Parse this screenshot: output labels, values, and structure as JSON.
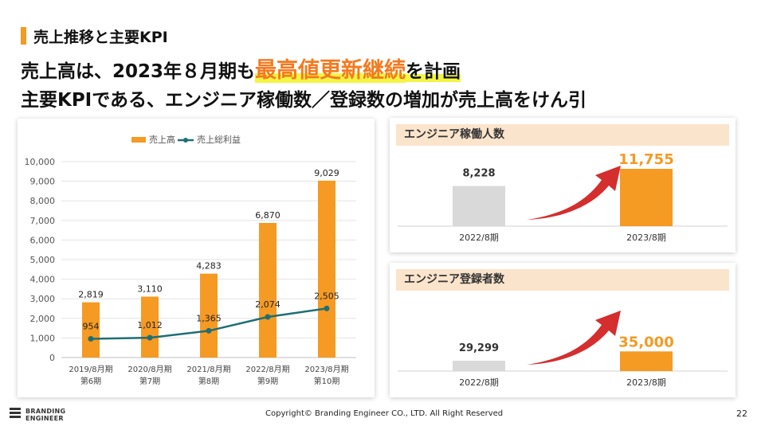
{
  "slide": {
    "section_title": "売上推移と主要KPI",
    "headline1_pre": "売上高は、2023年８月期も",
    "headline1_highlight": "最高値更新継続",
    "headline1_post": "を計画",
    "headline2": "主要KPIである、エンジニア稼働数／登録数の増加が売上高をけん引",
    "footer": "Copyright© Branding Engineer CO., LTD. All Right Reserved",
    "page_number": "22",
    "logo_line1": "BRANDING",
    "logo_line2": "ENGINEER"
  },
  "colors": {
    "accent": "#f59a23",
    "line": "#1f6e74",
    "highlight_text": "#f47a20",
    "marker": "#f3f542",
    "arrow": "#d42e2e",
    "grey_bar": "#d9d9d9",
    "kpi_header": "#fbe4cc"
  },
  "chart_data": [
    {
      "type": "bar",
      "categories": [
        [
          "2019/8月期",
          "第6期"
        ],
        [
          "2020/8月期",
          "第7期"
        ],
        [
          "2021/8月期",
          "第8期"
        ],
        [
          "2022/8月期",
          "第9期"
        ],
        [
          "2023/8月期",
          "第10期"
        ]
      ],
      "series": [
        {
          "name": "売上高",
          "kind": "bar",
          "values": [
            2819,
            3110,
            4283,
            6870,
            9029
          ],
          "labels": [
            "2,819",
            "3,110",
            "4,283",
            "6,870",
            "9,029"
          ]
        },
        {
          "name": "売上総利益",
          "kind": "line",
          "values": [
            954,
            1012,
            1365,
            2074,
            2505
          ],
          "labels": [
            "954",
            "1,012",
            "1,365",
            "2,074",
            "2,505"
          ]
        }
      ],
      "ylim": [
        0,
        10000
      ],
      "yticks": [
        "0",
        "1,000",
        "2,000",
        "3,000",
        "4,000",
        "5,000",
        "6,000",
        "7,000",
        "8,000",
        "9,000",
        "10,000"
      ],
      "grid": true,
      "legend": "top-center"
    },
    {
      "type": "bar",
      "title": "エンジニア稼働人数",
      "categories": [
        "2022/8期",
        "2023/8期"
      ],
      "values": [
        8228,
        11755
      ],
      "labels": [
        "8,228",
        "11,755"
      ]
    },
    {
      "type": "bar",
      "title": "エンジニア登録者数",
      "categories": [
        "2022/8期",
        "2023/8期"
      ],
      "values": [
        29299,
        35000
      ],
      "labels": [
        "29,299",
        "35,000"
      ]
    }
  ]
}
